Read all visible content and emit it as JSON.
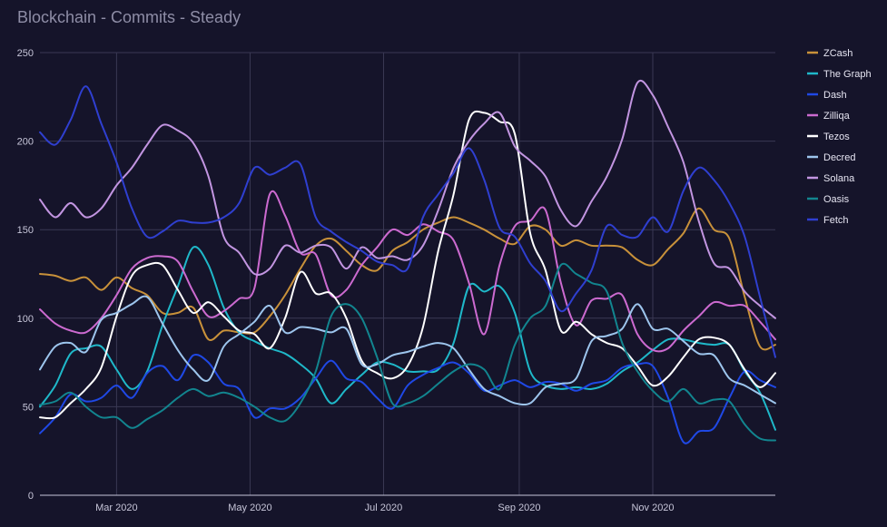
{
  "chart_data": {
    "type": "line",
    "title": "Blockchain - Commits - Steady",
    "xlabel": "",
    "ylabel": "",
    "x_start": "2020-01-26",
    "x_end": "2020-12-27",
    "ylim": [
      0,
      250
    ],
    "y_ticks": [
      0,
      50,
      100,
      150,
      200,
      250
    ],
    "x_ticks": [
      {
        "label": "Mar 2020",
        "date": "2020-03-01"
      },
      {
        "label": "May 2020",
        "date": "2020-05-01"
      },
      {
        "label": "Jul 2020",
        "date": "2020-07-01"
      },
      {
        "label": "Sep 2020",
        "date": "2020-09-01"
      },
      {
        "label": "Nov 2020",
        "date": "2020-11-01"
      }
    ],
    "grid": true,
    "legend_position": "right",
    "x": [
      "2020-01-26",
      "2020-02-02",
      "2020-02-09",
      "2020-02-16",
      "2020-02-23",
      "2020-03-01",
      "2020-03-08",
      "2020-03-15",
      "2020-03-22",
      "2020-03-29",
      "2020-04-05",
      "2020-04-12",
      "2020-04-19",
      "2020-04-26",
      "2020-05-03",
      "2020-05-10",
      "2020-05-17",
      "2020-05-24",
      "2020-05-31",
      "2020-06-07",
      "2020-06-14",
      "2020-06-21",
      "2020-06-28",
      "2020-07-05",
      "2020-07-12",
      "2020-07-19",
      "2020-07-26",
      "2020-08-02",
      "2020-08-09",
      "2020-08-16",
      "2020-08-23",
      "2020-08-30",
      "2020-09-06",
      "2020-09-13",
      "2020-09-20",
      "2020-09-27",
      "2020-10-04",
      "2020-10-11",
      "2020-10-18",
      "2020-10-25",
      "2020-11-01",
      "2020-11-08",
      "2020-11-15",
      "2020-11-22",
      "2020-11-29",
      "2020-12-06",
      "2020-12-13",
      "2020-12-20",
      "2020-12-27"
    ],
    "series": [
      {
        "name": "ZCash",
        "color": "#c8913a",
        "values": [
          125,
          124,
          121,
          123,
          116,
          123,
          117,
          113,
          103,
          103,
          106,
          88,
          93,
          92,
          92,
          101,
          113,
          128,
          141,
          145,
          138,
          130,
          127,
          138,
          143,
          150,
          154,
          157,
          154,
          150,
          145,
          142,
          152,
          150,
          141,
          144,
          141,
          141,
          140,
          133,
          130,
          139,
          148,
          162,
          150,
          145,
          112,
          84,
          85
        ]
      },
      {
        "name": "The Graph",
        "color": "#1fb8c9",
        "values": [
          50,
          62,
          80,
          83,
          84,
          71,
          60,
          70,
          96,
          118,
          140,
          130,
          106,
          92,
          87,
          83,
          80,
          74,
          66,
          52,
          60,
          68,
          75,
          74,
          70,
          70,
          71,
          86,
          118,
          115,
          118,
          103,
          70,
          62,
          60,
          61,
          60,
          63,
          70,
          75,
          82,
          88,
          88,
          86,
          85,
          85,
          70,
          58,
          37
        ]
      },
      {
        "name": "Dash",
        "color": "#1f48e5",
        "values": [
          35,
          44,
          57,
          53,
          55,
          62,
          55,
          69,
          73,
          65,
          79,
          75,
          63,
          60,
          44,
          49,
          49,
          55,
          66,
          76,
          66,
          64,
          55,
          49,
          62,
          68,
          72,
          75,
          69,
          59,
          62,
          65,
          61,
          64,
          63,
          59,
          63,
          65,
          72,
          74,
          73,
          55,
          30,
          36,
          38,
          55,
          70,
          65,
          61
        ]
      },
      {
        "name": "Zilliqa",
        "color": "#cc6ad0",
        "values": [
          105,
          97,
          93,
          92,
          100,
          113,
          128,
          134,
          135,
          132,
          115,
          101,
          104,
          111,
          117,
          170,
          158,
          137,
          136,
          113,
          116,
          130,
          140,
          150,
          147,
          153,
          149,
          144,
          120,
          91,
          130,
          152,
          155,
          161,
          120,
          96,
          110,
          111,
          113,
          91,
          82,
          83,
          93,
          101,
          109,
          107,
          107,
          98,
          88
        ]
      },
      {
        "name": "Tezos",
        "color": "#ffffff",
        "values": [
          44,
          44,
          52,
          60,
          72,
          101,
          124,
          130,
          130,
          116,
          103,
          109,
          101,
          93,
          91,
          83,
          100,
          126,
          114,
          114,
          100,
          76,
          69,
          66,
          73,
          95,
          138,
          170,
          212,
          216,
          211,
          204,
          148,
          127,
          93,
          98,
          91,
          86,
          83,
          73,
          62,
          67,
          78,
          88,
          89,
          85,
          71,
          61,
          69
        ]
      },
      {
        "name": "Decred",
        "color": "#9dc5ed",
        "values": [
          71,
          84,
          86,
          81,
          99,
          103,
          108,
          112,
          97,
          82,
          71,
          65,
          84,
          91,
          98,
          107,
          92,
          95,
          94,
          92,
          94,
          74,
          74,
          79,
          81,
          84,
          86,
          83,
          71,
          60,
          56,
          52,
          52,
          61,
          63,
          66,
          87,
          90,
          94,
          108,
          94,
          94,
          87,
          80,
          79,
          66,
          62,
          57,
          52
        ]
      },
      {
        "name": "Solana",
        "color": "#c295e1",
        "values": [
          167,
          157,
          165,
          157,
          162,
          175,
          185,
          198,
          209,
          206,
          199,
          180,
          146,
          137,
          125,
          128,
          141,
          137,
          141,
          140,
          128,
          140,
          134,
          135,
          133,
          141,
          161,
          185,
          200,
          210,
          216,
          197,
          189,
          180,
          161,
          152,
          166,
          180,
          201,
          233,
          226,
          208,
          188,
          155,
          131,
          128,
          115,
          107,
          100
        ]
      },
      {
        "name": "Oasis",
        "color": "#12858f",
        "values": [
          51,
          53,
          58,
          50,
          44,
          44,
          38,
          43,
          48,
          55,
          60,
          56,
          58,
          55,
          50,
          44,
          42,
          52,
          70,
          101,
          108,
          100,
          78,
          52,
          52,
          56,
          63,
          70,
          74,
          71,
          60,
          85,
          100,
          107,
          130,
          125,
          120,
          115,
          86,
          70,
          59,
          53,
          60,
          52,
          54,
          53,
          40,
          32,
          31
        ]
      },
      {
        "name": "Fetch",
        "color": "#2f3fd0",
        "values": [
          205,
          198,
          212,
          231,
          210,
          188,
          162,
          146,
          149,
          155,
          154,
          154,
          157,
          165,
          185,
          181,
          185,
          187,
          157,
          149,
          143,
          138,
          132,
          130,
          128,
          157,
          170,
          182,
          196,
          178,
          151,
          146,
          131,
          121,
          104,
          114,
          127,
          152,
          147,
          146,
          157,
          149,
          172,
          185,
          178,
          165,
          146,
          112,
          78
        ]
      }
    ]
  }
}
